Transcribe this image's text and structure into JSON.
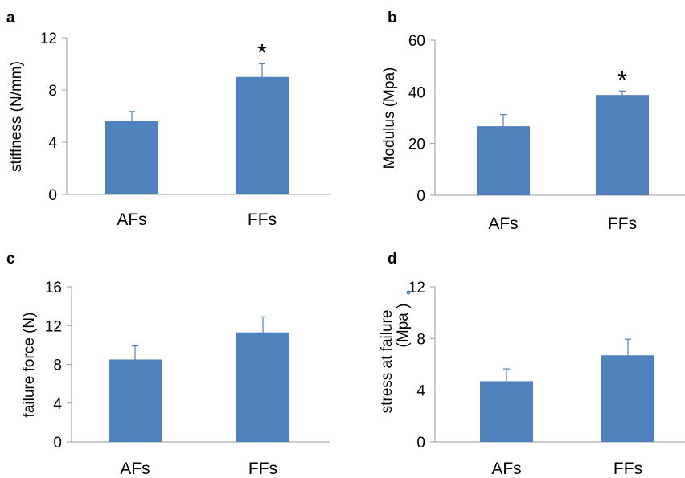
{
  "chart_data": [
    {
      "panel": "a",
      "type": "bar",
      "categories": [
        "AFs",
        "FFs"
      ],
      "values": [
        5.6,
        9.0
      ],
      "errors": [
        0.75,
        1.0
      ],
      "significance": [
        "",
        "*"
      ],
      "ylabel": "stiffness (N/mm)",
      "ylim": [
        0,
        12
      ],
      "yticks": [
        "0",
        "4",
        "8",
        "12"
      ],
      "grid": false,
      "color": "#4F81BD"
    },
    {
      "panel": "b",
      "type": "bar",
      "categories": [
        "AFs",
        "FFs"
      ],
      "values": [
        26.7,
        38.8
      ],
      "errors": [
        4.5,
        1.5
      ],
      "significance": [
        "",
        "*"
      ],
      "ylabel": "Modulus (Mpa)",
      "ylim": [
        0,
        60
      ],
      "yticks": [
        "0",
        "20",
        "40",
        "60"
      ],
      "grid": false,
      "color": "#4F81BD"
    },
    {
      "panel": "c",
      "type": "bar",
      "categories": [
        "AFs",
        "FFs"
      ],
      "values": [
        8.5,
        11.3
      ],
      "errors": [
        1.4,
        1.6
      ],
      "significance": [
        "",
        ""
      ],
      "ylabel": "failure  force (N)",
      "ylim": [
        0,
        16
      ],
      "yticks": [
        "0",
        "4",
        "8",
        "12",
        "16"
      ],
      "grid": false,
      "color": "#4F81BD"
    },
    {
      "panel": "d",
      "type": "bar",
      "categories": [
        "AFs",
        "FFs"
      ],
      "values": [
        4.7,
        6.7
      ],
      "errors": [
        0.95,
        1.25
      ],
      "significance": [
        "",
        ""
      ],
      "ylabel": "stress at failure",
      "ylabel2": "(Mpa )",
      "ylim": [
        0,
        12
      ],
      "yticks": [
        "0",
        "4",
        "8",
        "12"
      ],
      "grid": false,
      "color": "#4F81BD"
    }
  ]
}
